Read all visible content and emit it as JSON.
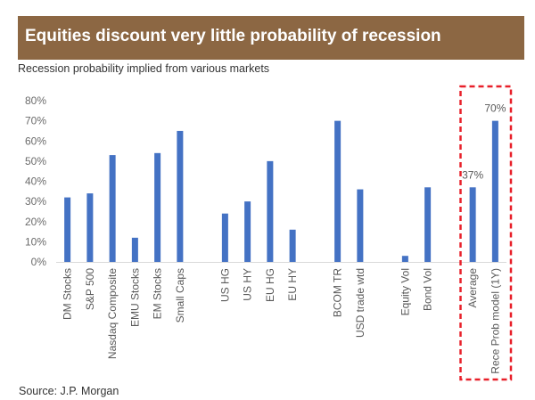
{
  "header": {
    "title": "Equities discount very little probability of recession",
    "subtitle": "Recession probability implied from various markets",
    "source": "Source: J.P. Morgan",
    "banner_color": "#8c6743"
  },
  "chart_data": {
    "type": "bar",
    "title": "Recession probability implied from various markets",
    "xlabel": "",
    "ylabel": "",
    "ylim": [
      0,
      80
    ],
    "yticks": [
      0,
      10,
      20,
      30,
      40,
      50,
      60,
      70,
      80
    ],
    "ytick_labels": [
      "0%",
      "10%",
      "20%",
      "30%",
      "40%",
      "50%",
      "60%",
      "70%",
      "80%"
    ],
    "grid": false,
    "bar_color": "#4472c4",
    "categories": [
      "DM Stocks",
      "S&P 500",
      "Nasdaq Composite",
      "EMU Stocks",
      "EM Stocks",
      "Small Caps",
      "",
      "US HG",
      "US HY",
      "EU HG",
      "EU HY",
      "",
      "BCOM TR",
      "USD trade wtd",
      "",
      "Equity Vol",
      "Bond Vol",
      "",
      "Average",
      "Rece Prob model (1Y)"
    ],
    "values": [
      32,
      34,
      53,
      12,
      54,
      65,
      null,
      24,
      30,
      50,
      16,
      null,
      70,
      36,
      null,
      3,
      37,
      null,
      37,
      70
    ],
    "data_labels": [
      {
        "category": "Average",
        "text": "37%"
      },
      {
        "category": "Rece Prob model (1Y)",
        "text": "70%"
      }
    ],
    "annotations": [
      {
        "type": "dashed-box",
        "color": "#e8202a",
        "covers": [
          "Average",
          "Rece Prob model (1Y)"
        ]
      }
    ]
  }
}
